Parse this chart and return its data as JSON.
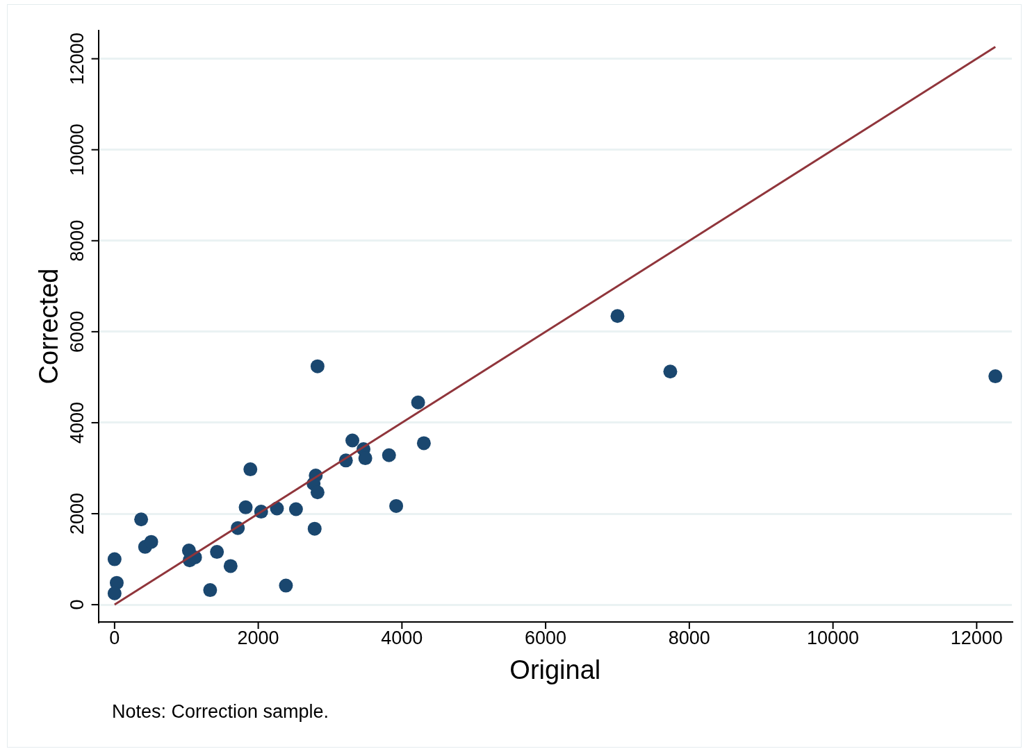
{
  "chart_data": {
    "type": "scatter",
    "xlabel": "Original",
    "ylabel": "Corrected",
    "xlim": [
      -225,
      12490
    ],
    "ylim": [
      -380,
      12620
    ],
    "xticks": [
      0,
      2000,
      4000,
      6000,
      8000,
      10000,
      12000
    ],
    "yticks": [
      0,
      2000,
      4000,
      6000,
      8000,
      10000,
      12000
    ],
    "grid": "y",
    "legend": false,
    "marker": "circle",
    "annotations": [
      "Notes: Correction sample."
    ],
    "series": [
      {
        "color": "#1a476f",
        "x": [
          0,
          30,
          0,
          370,
          425,
          510,
          1035,
          1045,
          1120,
          1330,
          1425,
          1615,
          1715,
          1825,
          1890,
          2040,
          2260,
          2385,
          2525,
          2800,
          2770,
          2825,
          2785,
          2825,
          3220,
          3310,
          3465,
          3490,
          3820,
          3920,
          4225,
          4305,
          7000,
          7735,
          12260
        ],
        "values": [
          1000,
          480,
          250,
          1875,
          1270,
          1380,
          1190,
          975,
          1040,
          320,
          1160,
          850,
          1685,
          2140,
          2975,
          2045,
          2115,
          420,
          2100,
          2840,
          2660,
          2470,
          1670,
          5240,
          3170,
          3610,
          3420,
          3220,
          3285,
          2170,
          4445,
          3550,
          6345,
          5125,
          5020
        ]
      },
      {
        "type": "line",
        "color": "#90353b",
        "x": [
          0,
          12260
        ],
        "values": [
          0,
          12260
        ],
        "marker": "none",
        "line_style": "solid"
      }
    ]
  }
}
